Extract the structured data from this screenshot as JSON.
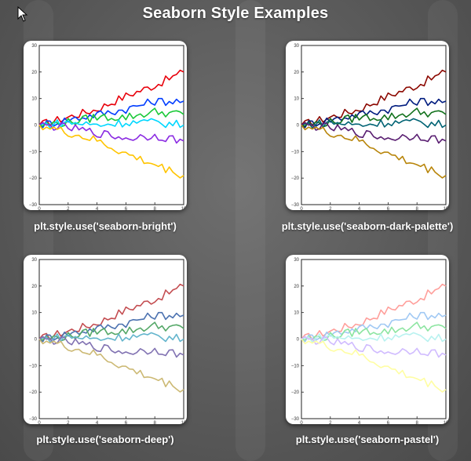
{
  "page": {
    "title": "Seaborn Style Examples"
  },
  "charts": [
    {
      "caption": "plt.style.use('seaborn-bright')",
      "colors": [
        "#e8000b",
        "#023eff",
        "#1ac938",
        "#00d7ff",
        "#8b2be2",
        "#ffc400"
      ]
    },
    {
      "caption": "plt.style.use('seaborn-dark-palette')",
      "colors": [
        "#8c0800",
        "#001c7f",
        "#12711c",
        "#006374",
        "#591e71",
        "#b8850a"
      ]
    },
    {
      "caption": "plt.style.use('seaborn-deep')",
      "colors": [
        "#c44e52",
        "#4c72b0",
        "#55a868",
        "#64b5cd",
        "#8172b2",
        "#ccb974"
      ]
    },
    {
      "caption": "plt.style.use('seaborn-pastel')",
      "colors": [
        "#ff9f9b",
        "#a1c9f4",
        "#8de5a1",
        "#b9f2f0",
        "#d0bbff",
        "#fffea3"
      ]
    }
  ],
  "chart_data": [
    {
      "type": "line",
      "xlim": [
        0,
        10
      ],
      "ylim": [
        -30,
        30
      ],
      "x_ticks": [
        "0",
        "2",
        "4",
        "6",
        "8",
        "10"
      ],
      "y_ticks": [
        "30",
        "20",
        "10",
        "0",
        "−10",
        "−20",
        "−30"
      ],
      "x": [
        0,
        2,
        4,
        6,
        8,
        10
      ],
      "series": [
        {
          "values": [
            0,
            3,
            6,
            11,
            15,
            20
          ]
        },
        {
          "values": [
            0,
            2,
            4,
            6,
            9,
            9
          ]
        },
        {
          "values": [
            0,
            1,
            3,
            3,
            5,
            4
          ]
        },
        {
          "values": [
            0,
            1,
            0,
            1,
            1,
            0
          ]
        },
        {
          "values": [
            0,
            -1,
            -3,
            -5,
            -4,
            -6
          ]
        },
        {
          "values": [
            0,
            -3,
            -6,
            -11,
            -15,
            -19
          ]
        }
      ]
    },
    {
      "type": "line",
      "xlim": [
        0,
        10
      ],
      "ylim": [
        -30,
        30
      ],
      "x_ticks": [
        "0",
        "2",
        "4",
        "6",
        "8",
        "10"
      ],
      "y_ticks": [
        "30",
        "20",
        "10",
        "0",
        "−10",
        "−20",
        "−30"
      ],
      "x": [
        0,
        2,
        4,
        6,
        8,
        10
      ],
      "series": [
        {
          "values": [
            0,
            3,
            6,
            11,
            15,
            20
          ]
        },
        {
          "values": [
            0,
            2,
            4,
            6,
            9,
            9
          ]
        },
        {
          "values": [
            0,
            1,
            3,
            3,
            5,
            4
          ]
        },
        {
          "values": [
            0,
            1,
            0,
            1,
            1,
            0
          ]
        },
        {
          "values": [
            0,
            -1,
            -3,
            -5,
            -4,
            -6
          ]
        },
        {
          "values": [
            0,
            -3,
            -6,
            -11,
            -15,
            -19
          ]
        }
      ]
    },
    {
      "type": "line",
      "xlim": [
        0,
        10
      ],
      "ylim": [
        -30,
        30
      ],
      "x_ticks": [
        "0",
        "2",
        "4",
        "6",
        "8",
        "10"
      ],
      "y_ticks": [
        "30",
        "20",
        "10",
        "0",
        "−10",
        "−20",
        "−30"
      ],
      "x": [
        0,
        2,
        4,
        6,
        8,
        10
      ],
      "series": [
        {
          "values": [
            0,
            3,
            6,
            11,
            15,
            20
          ]
        },
        {
          "values": [
            0,
            2,
            4,
            6,
            9,
            9
          ]
        },
        {
          "values": [
            0,
            1,
            3,
            3,
            5,
            4
          ]
        },
        {
          "values": [
            0,
            1,
            0,
            1,
            1,
            0
          ]
        },
        {
          "values": [
            0,
            -1,
            -3,
            -5,
            -4,
            -6
          ]
        },
        {
          "values": [
            0,
            -3,
            -6,
            -11,
            -15,
            -19
          ]
        }
      ]
    },
    {
      "type": "line",
      "xlim": [
        0,
        10
      ],
      "ylim": [
        -30,
        30
      ],
      "x_ticks": [
        "0",
        "2",
        "4",
        "6",
        "8",
        "10"
      ],
      "y_ticks": [
        "30",
        "20",
        "10",
        "0",
        "−10",
        "−20",
        "−30"
      ],
      "x": [
        0,
        2,
        4,
        6,
        8,
        10
      ],
      "series": [
        {
          "values": [
            0,
            3,
            6,
            11,
            15,
            20
          ]
        },
        {
          "values": [
            0,
            2,
            4,
            6,
            9,
            9
          ]
        },
        {
          "values": [
            0,
            1,
            3,
            3,
            5,
            4
          ]
        },
        {
          "values": [
            0,
            1,
            0,
            1,
            1,
            0
          ]
        },
        {
          "values": [
            0,
            -1,
            -3,
            -5,
            -4,
            -6
          ]
        },
        {
          "values": [
            0,
            -3,
            -6,
            -11,
            -15,
            -19
          ]
        }
      ]
    }
  ]
}
